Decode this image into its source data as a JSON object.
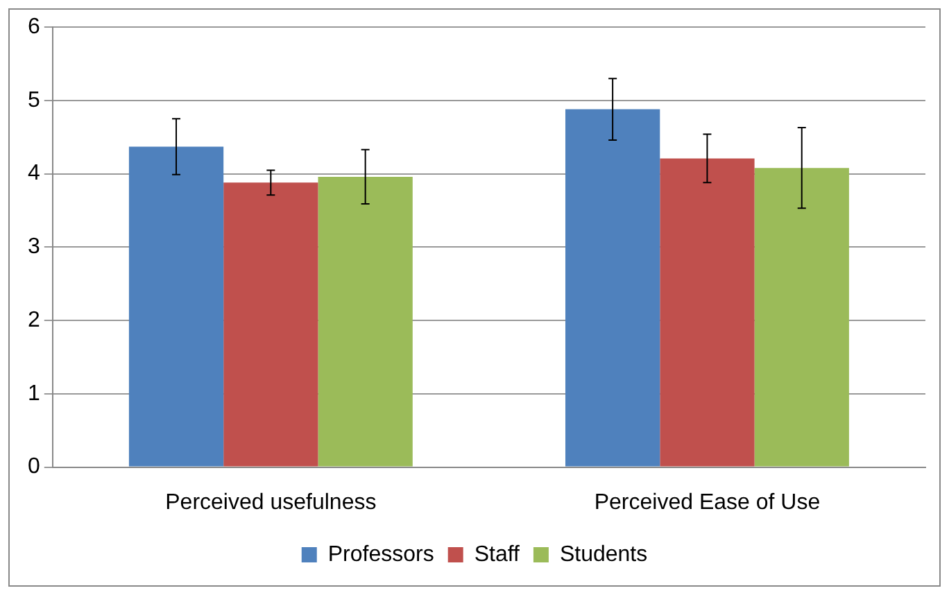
{
  "chart_data": {
    "type": "bar",
    "categories": [
      "Perceived usefulness",
      "Perceived Ease of Use"
    ],
    "series": [
      {
        "name": "Professors",
        "color": "#4f81bd",
        "values": [
          4.37,
          4.88
        ],
        "errors": [
          0.38,
          0.42
        ]
      },
      {
        "name": "Staff",
        "color": "#c0504d",
        "values": [
          3.88,
          4.21
        ],
        "errors": [
          0.17,
          0.33
        ]
      },
      {
        "name": "Students",
        "color": "#9bbb59",
        "values": [
          3.96,
          4.08
        ],
        "errors": [
          0.37,
          0.55
        ]
      }
    ],
    "ylim": [
      0,
      6
    ],
    "yticks": [
      0,
      1,
      2,
      3,
      4,
      5,
      6
    ],
    "grid": "y",
    "legend": "bottom"
  }
}
